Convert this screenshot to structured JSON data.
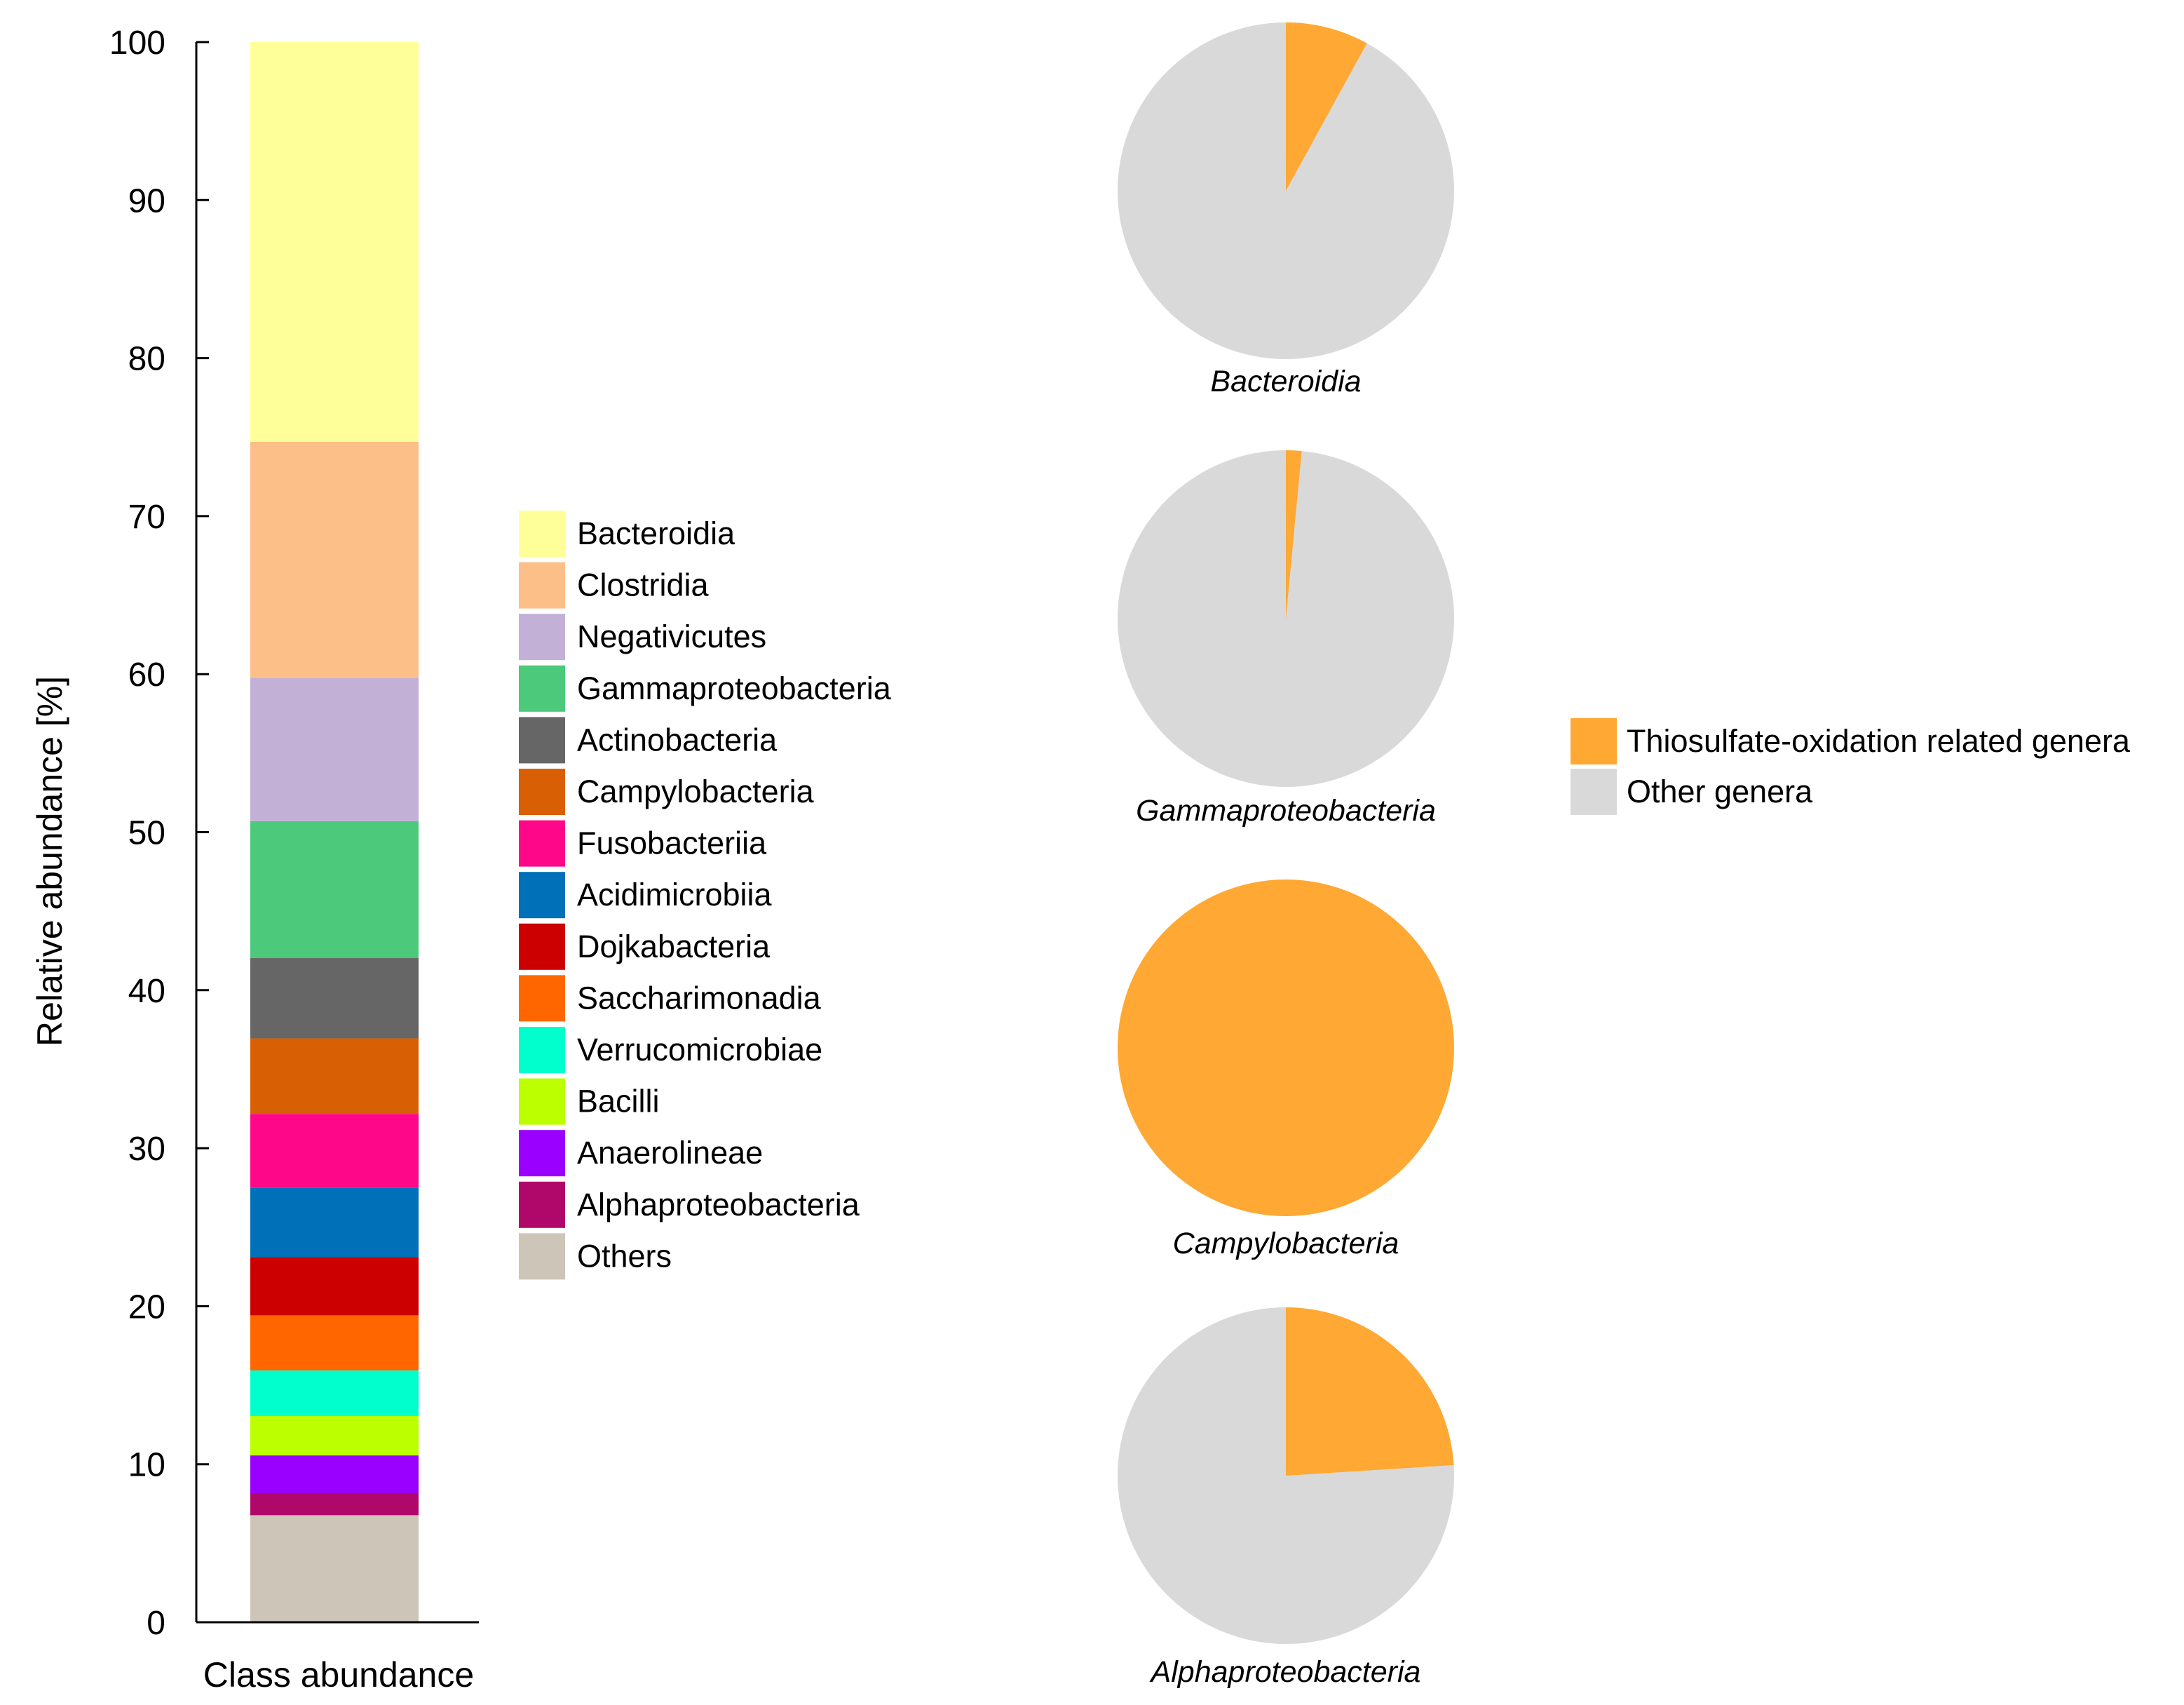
{
  "chart_data": [
    {
      "type": "bar",
      "stacked": true,
      "title": "",
      "xlabel": "Class abundance",
      "ylabel": "Relative abundance [%]",
      "ylim": [
        0,
        100
      ],
      "yticks": [
        "0",
        "10",
        "20",
        "30",
        "40",
        "50",
        "60",
        "70",
        "80",
        "90",
        "100"
      ],
      "categories": [
        "Class abundance"
      ],
      "series": [
        {
          "name": "Bacteroidia",
          "value": 25.4,
          "color": "#FFFF99"
        },
        {
          "name": "Clostridia",
          "value": 15.0,
          "color": "#FDBF88"
        },
        {
          "name": "Negativicutes",
          "value": 9.1,
          "color": "#C3B0D6"
        },
        {
          "name": "Gammaproteobacteria",
          "value": 8.7,
          "color": "#4CC97A"
        },
        {
          "name": "Actinobacteria",
          "value": 5.1,
          "color": "#666666"
        },
        {
          "name": "Campylobacteria",
          "value": 4.8,
          "color": "#D95F05"
        },
        {
          "name": "Fusobacteriia",
          "value": 4.7,
          "color": "#FF0788"
        },
        {
          "name": "Acidimicrobiia",
          "value": 4.4,
          "color": "#0070B8"
        },
        {
          "name": "Dojkabacteria",
          "value": 3.7,
          "color": "#CC0000"
        },
        {
          "name": "Saccharimonadia",
          "value": 3.5,
          "color": "#FF6600"
        },
        {
          "name": "Verrucomicrobiae",
          "value": 2.9,
          "color": "#00FFCC"
        },
        {
          "name": "Bacilli",
          "value": 2.5,
          "color": "#BBFF00"
        },
        {
          "name": "Anaerolineae",
          "value": 2.4,
          "color": "#9900FF"
        },
        {
          "name": "Alphaproteobacteria",
          "value": 1.4,
          "color": "#B0086A"
        },
        {
          "name": "Others",
          "value": 6.8,
          "color": "#CCC5B8"
        }
      ],
      "legend_position": "right of bar"
    },
    {
      "type": "pie",
      "legend": [
        {
          "name": "Thiosulfate-oxidation related genera",
          "color": "#FFA833"
        },
        {
          "name": "Other genera",
          "color": "#D9D9D9"
        }
      ],
      "pies": [
        {
          "label": "Bacteroidia",
          "thiosulfate_pct": 8,
          "other_pct": 92
        },
        {
          "label": "Gammaproteobacteria",
          "thiosulfate_pct": 1.5,
          "other_pct": 98.5
        },
        {
          "label": "Campylobacteria",
          "thiosulfate_pct": 100,
          "other_pct": 0
        },
        {
          "label": "Alphaproteobacteria",
          "thiosulfate_pct": 24,
          "other_pct": 76
        }
      ],
      "legend_position": "right"
    }
  ]
}
